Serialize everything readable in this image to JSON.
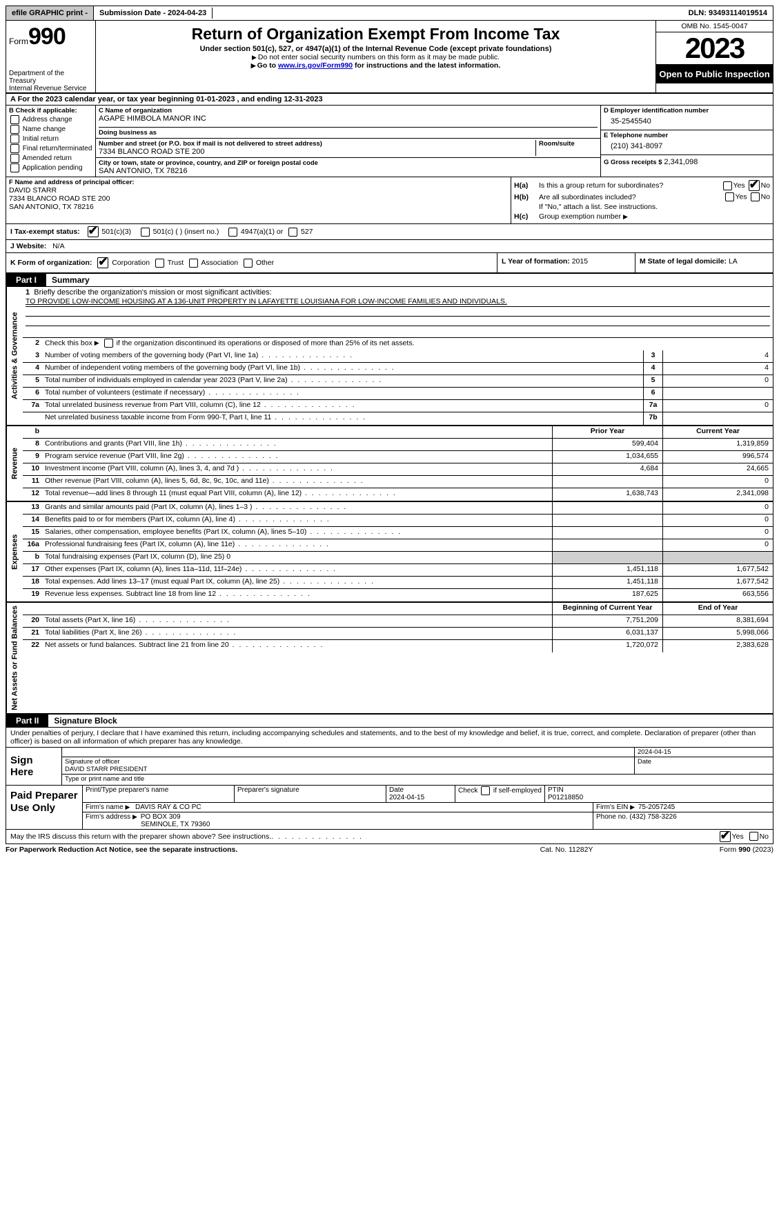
{
  "topbar": {
    "efile": "efile GRAPHIC print - ",
    "submission": "Submission Date - 2024-04-23",
    "dln": "DLN: 93493114019514"
  },
  "header": {
    "form_word": "Form",
    "form_num": "990",
    "dept": "Department of the Treasury",
    "irs": "Internal Revenue Service",
    "title": "Return of Organization Exempt From Income Tax",
    "sub1": "Under section 501(c), 527, or 4947(a)(1) of the Internal Revenue Code (except private foundations)",
    "sub2": "Do not enter social security numbers on this form as it may be made public.",
    "sub3_pre": "Go to ",
    "sub3_link": "www.irs.gov/Form990",
    "sub3_post": " for instructions and the latest information.",
    "omb": "OMB No. 1545-0047",
    "year": "2023",
    "open": "Open to Public Inspection"
  },
  "row_a": "A For the 2023 calendar year, or tax year beginning 01-01-2023    , and ending 12-31-2023",
  "section_b": {
    "title": "B Check if applicable:",
    "opts": [
      "Address change",
      "Name change",
      "Initial return",
      "Final return/terminated",
      "Amended return",
      "Application pending"
    ]
  },
  "section_c": {
    "name_lbl": "C Name of organization",
    "name": "AGAPE HIMBOLA MANOR INC",
    "dba_lbl": "Doing business as",
    "dba": "",
    "addr_lbl": "Number and street (or P.O. box if mail is not delivered to street address)",
    "addr": "7334 BLANCO ROAD STE 200",
    "room_lbl": "Room/suite",
    "city_lbl": "City or town, state or province, country, and ZIP or foreign postal code",
    "city": "SAN ANTONIO, TX  78216"
  },
  "section_d": {
    "lbl": "D Employer identification number",
    "val": "35-2545540"
  },
  "section_e": {
    "lbl": "E Telephone number",
    "val": "(210) 341-8097"
  },
  "section_g": {
    "lbl": "G Gross receipts $",
    "val": "2,341,098"
  },
  "section_f": {
    "lbl": "F  Name and address of principal officer:",
    "name": "DAVID STARR",
    "addr1": "7334 BLANCO ROAD STE 200",
    "addr2": "SAN ANTONIO, TX  78216"
  },
  "section_h": {
    "ha_lbl": "H(a)",
    "ha_txt": "Is this a group return for subordinates?",
    "ha_yes": false,
    "ha_no": true,
    "hb_lbl": "H(b)",
    "hb_txt": "Are all subordinates included?",
    "hb_yes": false,
    "hb_no": false,
    "hb_note": "If \"No,\" attach a list. See instructions.",
    "hc_lbl": "H(c)",
    "hc_txt": "Group exemption number",
    "hc_val": ""
  },
  "section_i": {
    "lbl": "I  Tax-exempt status:",
    "c3": true,
    "c_other": false,
    "c_other_txt": "501(c) (  ) (insert no.)",
    "a1": false,
    "a1_txt": "4947(a)(1) or",
    "s527": false,
    "s527_txt": "527"
  },
  "section_j": {
    "lbl": "J  Website:",
    "val": "N/A"
  },
  "section_k": {
    "lbl": "K Form of organization:",
    "corp": true,
    "trust": false,
    "assoc": false,
    "other": false,
    "corp_t": "Corporation",
    "trust_t": "Trust",
    "assoc_t": "Association",
    "other_t": "Other"
  },
  "section_l": {
    "lbl": "L Year of formation:",
    "val": "2015"
  },
  "section_m": {
    "lbl": "M State of legal domicile:",
    "val": "LA"
  },
  "part1": {
    "hdr": "Part I",
    "title": "Summary",
    "side_gov": "Activities & Governance",
    "side_rev": "Revenue",
    "side_exp": "Expenses",
    "side_net": "Net Assets or Fund Balances",
    "line1": "Briefly describe the organization's mission or most significant activities:",
    "mission": "TO PROVIDE LOW-INCOME HOUSING AT A 136-UNIT PROPERTY IN LAFAYETTE LOUISIANA FOR LOW-INCOME FAMILIES AND INDIVIDUALS.",
    "line2": "Check this box         if the organization discontinued its operations or disposed of more than 25% of its net assets.",
    "gov_rows": [
      {
        "n": "3",
        "t": "Number of voting members of the governing body (Part VI, line 1a)",
        "col": "3",
        "v": "4"
      },
      {
        "n": "4",
        "t": "Number of independent voting members of the governing body (Part VI, line 1b)",
        "col": "4",
        "v": "4"
      },
      {
        "n": "5",
        "t": "Total number of individuals employed in calendar year 2023 (Part V, line 2a)",
        "col": "5",
        "v": "0"
      },
      {
        "n": "6",
        "t": "Total number of volunteers (estimate if necessary)",
        "col": "6",
        "v": ""
      },
      {
        "n": "7a",
        "t": "Total unrelated business revenue from Part VIII, column (C), line 12",
        "col": "7a",
        "v": "0"
      },
      {
        "n": "",
        "t": "Net unrelated business taxable income from Form 990-T, Part I, line 11",
        "col": "7b",
        "v": ""
      }
    ],
    "col_hdr_prior": "Prior Year",
    "col_hdr_curr": "Current Year",
    "rev_rows": [
      {
        "n": "8",
        "t": "Contributions and grants (Part VIII, line 1h)",
        "p": "599,404",
        "c": "1,319,859"
      },
      {
        "n": "9",
        "t": "Program service revenue (Part VIII, line 2g)",
        "p": "1,034,655",
        "c": "996,574"
      },
      {
        "n": "10",
        "t": "Investment income (Part VIII, column (A), lines 3, 4, and 7d )",
        "p": "4,684",
        "c": "24,665"
      },
      {
        "n": "11",
        "t": "Other revenue (Part VIII, column (A), lines 5, 6d, 8c, 9c, 10c, and 11e)",
        "p": "",
        "c": "0"
      },
      {
        "n": "12",
        "t": "Total revenue—add lines 8 through 11 (must equal Part VIII, column (A), line 12)",
        "p": "1,638,743",
        "c": "2,341,098"
      }
    ],
    "exp_rows": [
      {
        "n": "13",
        "t": "Grants and similar amounts paid (Part IX, column (A), lines 1–3 )",
        "p": "",
        "c": "0"
      },
      {
        "n": "14",
        "t": "Benefits paid to or for members (Part IX, column (A), line 4)",
        "p": "",
        "c": "0"
      },
      {
        "n": "15",
        "t": "Salaries, other compensation, employee benefits (Part IX, column (A), lines 5–10)",
        "p": "",
        "c": "0"
      },
      {
        "n": "16a",
        "t": "Professional fundraising fees (Part IX, column (A), line 11e)",
        "p": "",
        "c": "0"
      },
      {
        "n": "b",
        "t": "Total fundraising expenses (Part IX, column (D), line 25) 0",
        "p": "SHADE",
        "c": "SHADE"
      },
      {
        "n": "17",
        "t": "Other expenses (Part IX, column (A), lines 11a–11d, 11f–24e)",
        "p": "1,451,118",
        "c": "1,677,542"
      },
      {
        "n": "18",
        "t": "Total expenses. Add lines 13–17 (must equal Part IX, column (A), line 25)",
        "p": "1,451,118",
        "c": "1,677,542"
      },
      {
        "n": "19",
        "t": "Revenue less expenses. Subtract line 18 from line 12",
        "p": "187,625",
        "c": "663,556"
      }
    ],
    "net_hdr_a": "Beginning of Current Year",
    "net_hdr_b": "End of Year",
    "net_rows": [
      {
        "n": "20",
        "t": "Total assets (Part X, line 16)",
        "p": "7,751,209",
        "c": "8,381,694"
      },
      {
        "n": "21",
        "t": "Total liabilities (Part X, line 26)",
        "p": "6,031,137",
        "c": "5,998,066"
      },
      {
        "n": "22",
        "t": "Net assets or fund balances. Subtract line 21 from line 20",
        "p": "1,720,072",
        "c": "2,383,628"
      }
    ]
  },
  "part2": {
    "hdr": "Part II",
    "title": "Signature Block",
    "decl": "Under penalties of perjury, I declare that I have examined this return, including accompanying schedules and statements, and to the best of my knowledge and belief, it is true, correct, and complete. Declaration of preparer (other than officer) is based on all information of which preparer has any knowledge."
  },
  "sign": {
    "label": "Sign Here",
    "sig_lbl": "Signature of officer",
    "sig_name": "DAVID STARR  PRESIDENT",
    "date_lbl": "Date",
    "date": "2024-04-15",
    "type_lbl": "Type or print name and title"
  },
  "paid": {
    "label": "Paid Preparer Use Only",
    "print_lbl": "Print/Type preparer's name",
    "sig_lbl": "Preparer's signature",
    "date_lbl": "Date",
    "date": "2024-04-15",
    "self_lbl": "Check        if self-employed",
    "ptin_lbl": "PTIN",
    "ptin": "P01218850",
    "firm_name_lbl": "Firm's name",
    "firm_name": "DAVIS RAY & CO PC",
    "firm_ein_lbl": "Firm's EIN",
    "firm_ein": "75-2057245",
    "firm_addr_lbl": "Firm's address",
    "firm_addr1": "PO BOX 309",
    "firm_addr2": "SEMINOLE, TX  79360",
    "phone_lbl": "Phone no.",
    "phone": "(432) 758-3226"
  },
  "may_irs": {
    "txt": "May the IRS discuss this return with the preparer shown above? See instructions.",
    "yes": true,
    "no": false
  },
  "footer": {
    "left": "For Paperwork Reduction Act Notice, see the separate instructions.",
    "mid": "Cat. No. 11282Y",
    "right_pre": "Form ",
    "right_form": "990",
    "right_post": " (2023)"
  }
}
